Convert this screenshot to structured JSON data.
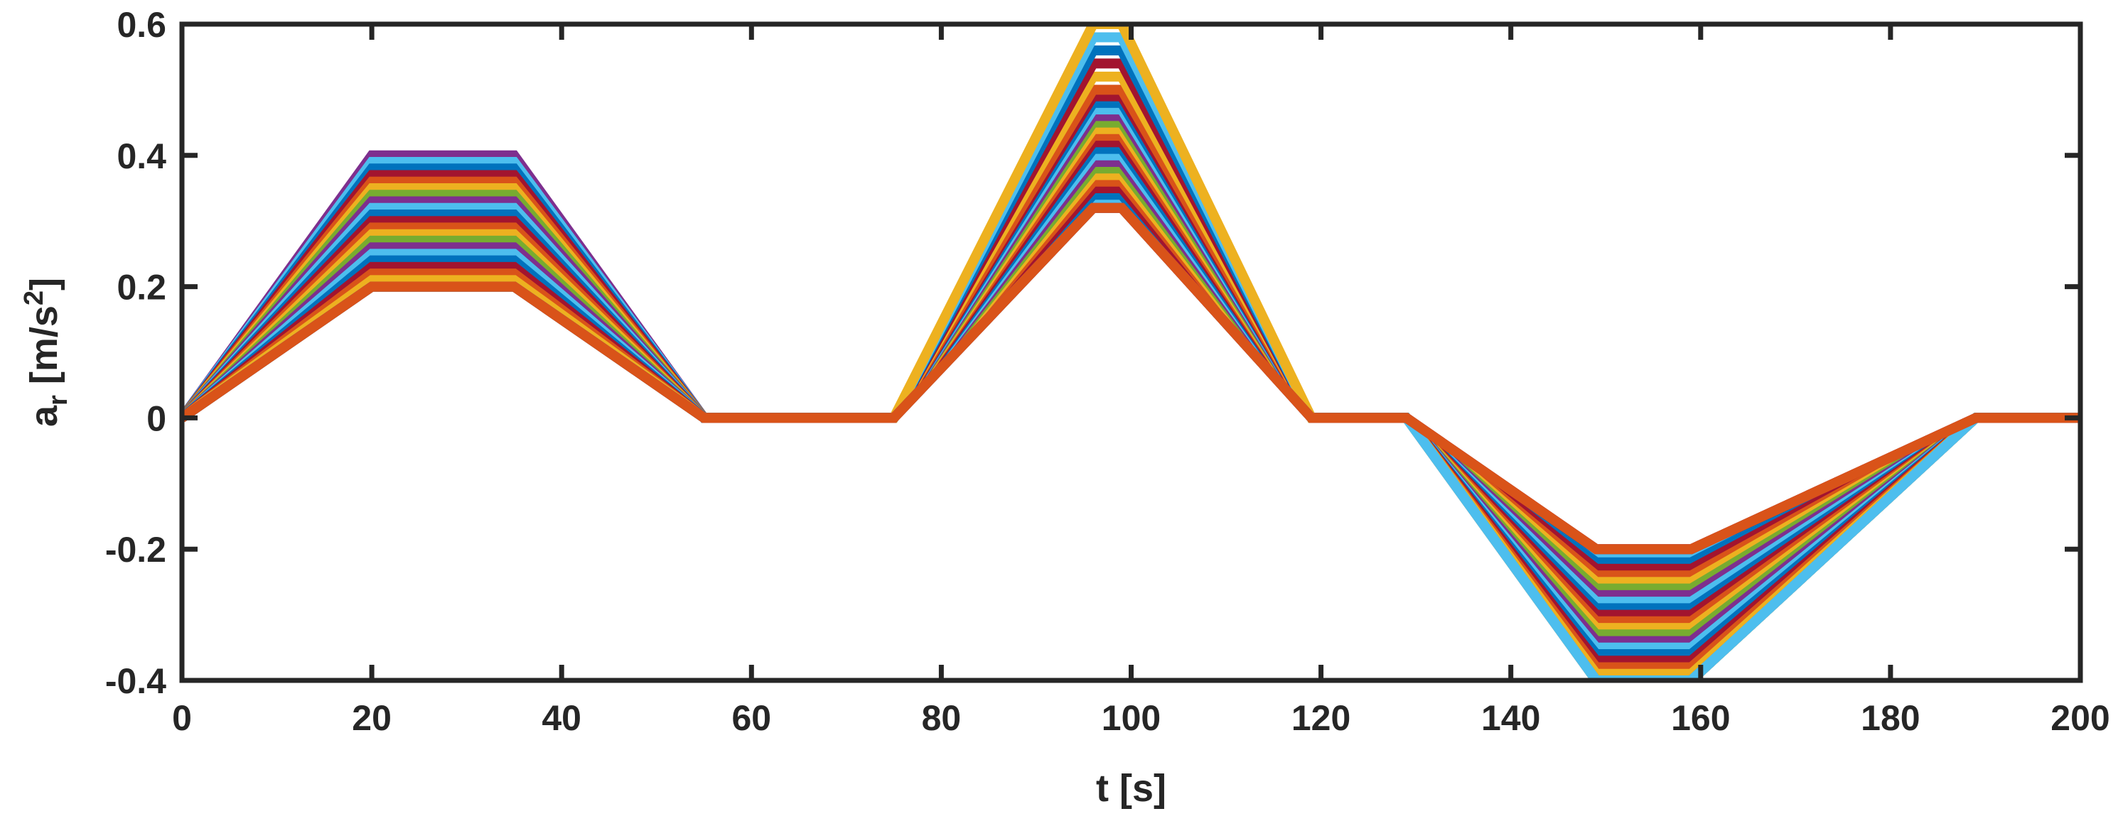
{
  "chart_data": {
    "type": "line",
    "title": "",
    "xlabel": "t [s]",
    "ylabel": {
      "base": "a",
      "subscript": "r",
      "units_prefix": " [m/s",
      "units_superscript": "2",
      "units_suffix": "]"
    },
    "xlim": [
      0,
      200
    ],
    "ylim": [
      -0.4,
      0.6
    ],
    "xticks": [
      0,
      20,
      40,
      60,
      80,
      100,
      120,
      140,
      160,
      180,
      200
    ],
    "xtick_labels": [
      "0",
      "20",
      "40",
      "60",
      "80",
      "100",
      "120",
      "140",
      "160",
      "180",
      "200"
    ],
    "yticks": [
      -0.4,
      -0.2,
      0,
      0.2,
      0.4,
      0.6
    ],
    "ytick_labels": [
      "-0.4",
      "-0.2",
      "0",
      "0.2",
      "0.4",
      "0.6"
    ],
    "grid": false,
    "legend": "none",
    "profile_x": [
      0,
      20,
      35,
      55,
      75,
      96,
      99,
      119,
      129,
      149,
      159,
      189,
      200
    ],
    "series_peaks": [
      {
        "p1": 0.4,
        "p2": 0.32,
        "p3": -0.2,
        "color": "#7E2F8E"
      },
      {
        "p1": 0.39,
        "p2": 0.33,
        "p3": -0.21,
        "color": "#4DBEEE"
      },
      {
        "p1": 0.38,
        "p2": 0.34,
        "p3": -0.22,
        "color": "#0072BD"
      },
      {
        "p1": 0.37,
        "p2": 0.35,
        "p3": -0.23,
        "color": "#A2142F"
      },
      {
        "p1": 0.36,
        "p2": 0.36,
        "p3": -0.24,
        "color": "#D95319"
      },
      {
        "p1": 0.35,
        "p2": 0.37,
        "p3": -0.25,
        "color": "#EDB120"
      },
      {
        "p1": 0.34,
        "p2": 0.38,
        "p3": -0.26,
        "color": "#77AC30"
      },
      {
        "p1": 0.33,
        "p2": 0.39,
        "p3": -0.27,
        "color": "#7E2F8E"
      },
      {
        "p1": 0.32,
        "p2": 0.4,
        "p3": -0.28,
        "color": "#4DBEEE"
      },
      {
        "p1": 0.31,
        "p2": 0.41,
        "p3": -0.29,
        "color": "#0072BD"
      },
      {
        "p1": 0.3,
        "p2": 0.42,
        "p3": -0.3,
        "color": "#A2142F"
      },
      {
        "p1": 0.29,
        "p2": 0.43,
        "p3": -0.31,
        "color": "#D95319"
      },
      {
        "p1": 0.28,
        "p2": 0.44,
        "p3": -0.32,
        "color": "#EDB120"
      },
      {
        "p1": 0.27,
        "p2": 0.45,
        "p3": -0.33,
        "color": "#77AC30"
      },
      {
        "p1": 0.26,
        "p2": 0.46,
        "p3": -0.34,
        "color": "#7E2F8E"
      },
      {
        "p1": 0.25,
        "p2": 0.47,
        "p3": -0.35,
        "color": "#4DBEEE"
      },
      {
        "p1": 0.24,
        "p2": 0.48,
        "p3": -0.36,
        "color": "#0072BD"
      },
      {
        "p1": 0.23,
        "p2": 0.49,
        "p3": -0.37,
        "color": "#A2142F"
      },
      {
        "p1": 0.22,
        "p2": 0.5,
        "p3": -0.38,
        "color": "#D95319"
      },
      {
        "p1": 0.21,
        "p2": 0.52,
        "p3": -0.39,
        "color": "#EDB120"
      },
      {
        "p1": 0.2,
        "p2": 0.54,
        "p3": -0.4,
        "color": "#A2142F"
      },
      {
        "p1": 0.2,
        "p2": 0.56,
        "p3": -0.4,
        "color": "#0072BD"
      },
      {
        "p1": 0.2,
        "p2": 0.58,
        "p3": -0.4,
        "color": "#4DBEEE"
      },
      {
        "p1": 0.2,
        "p2": 0.6,
        "p3": -0.4,
        "color": "#EDB120"
      },
      {
        "p1": 0.2,
        "p2": 0.32,
        "p3": -0.4,
        "color": "#4DBEEE"
      },
      {
        "p1": 0.2,
        "p2": 0.32,
        "p3": -0.2,
        "color": "#A2142F"
      },
      {
        "p1": 0.2,
        "p2": 0.32,
        "p3": -0.2,
        "color": "#D95319"
      }
    ]
  }
}
